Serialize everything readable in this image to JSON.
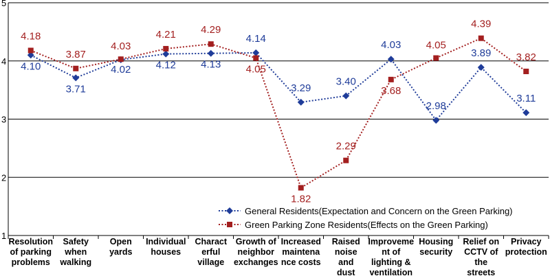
{
  "chart_data": {
    "type": "line",
    "title": "",
    "xlabel": "",
    "ylabel": "",
    "ylim": [
      1,
      5
    ],
    "yticks": [
      1,
      2,
      3,
      4,
      5
    ],
    "grid": true,
    "legend_position": "bottom-right",
    "categories": [
      [
        "Resolution",
        "of parking",
        "problems"
      ],
      [
        "Safety",
        "when",
        "walking"
      ],
      [
        "Open",
        "yards"
      ],
      [
        "Individual",
        "houses"
      ],
      [
        "Charact",
        "erful",
        "village"
      ],
      [
        "Growth of",
        "neighbor",
        "exchanges"
      ],
      [
        "Increased",
        "maintena",
        "nce costs"
      ],
      [
        "Raised",
        "noise",
        "and",
        "dust"
      ],
      [
        "Improveme",
        "nt of",
        "lighting &",
        "ventilation"
      ],
      [
        "Housing",
        "security"
      ],
      [
        "Relief on",
        "CCTV of",
        "the",
        "streets"
      ],
      [
        "Privacy",
        "protection"
      ]
    ],
    "series": [
      {
        "name": "General Residents(Expectation and Concern on the Green Parking)",
        "color": "#1f3c99",
        "marker": "diamond",
        "values": [
          4.1,
          3.71,
          4.02,
          4.12,
          4.13,
          4.14,
          3.29,
          3.4,
          4.03,
          2.98,
          3.89,
          3.11
        ],
        "labels": [
          "4.10",
          "3.71",
          "4.02",
          "4.12",
          "4.13",
          "4.14",
          "3.29",
          "3.40",
          "4.03",
          "2.98",
          "3.89",
          "3.11"
        ]
      },
      {
        "name": "Green Parking Zone Residents(Effects on the Green Parking)",
        "color": "#a31f1f",
        "marker": "square",
        "values": [
          4.18,
          3.87,
          4.03,
          4.21,
          4.29,
          4.05,
          1.82,
          2.29,
          3.68,
          4.05,
          4.39,
          3.82
        ],
        "labels": [
          "4.18",
          "3.87",
          "4.03",
          "4.21",
          "4.29",
          "4.05",
          "1.82",
          "2.29",
          "3.68",
          "4.05",
          "4.39",
          "3.82"
        ]
      }
    ]
  }
}
